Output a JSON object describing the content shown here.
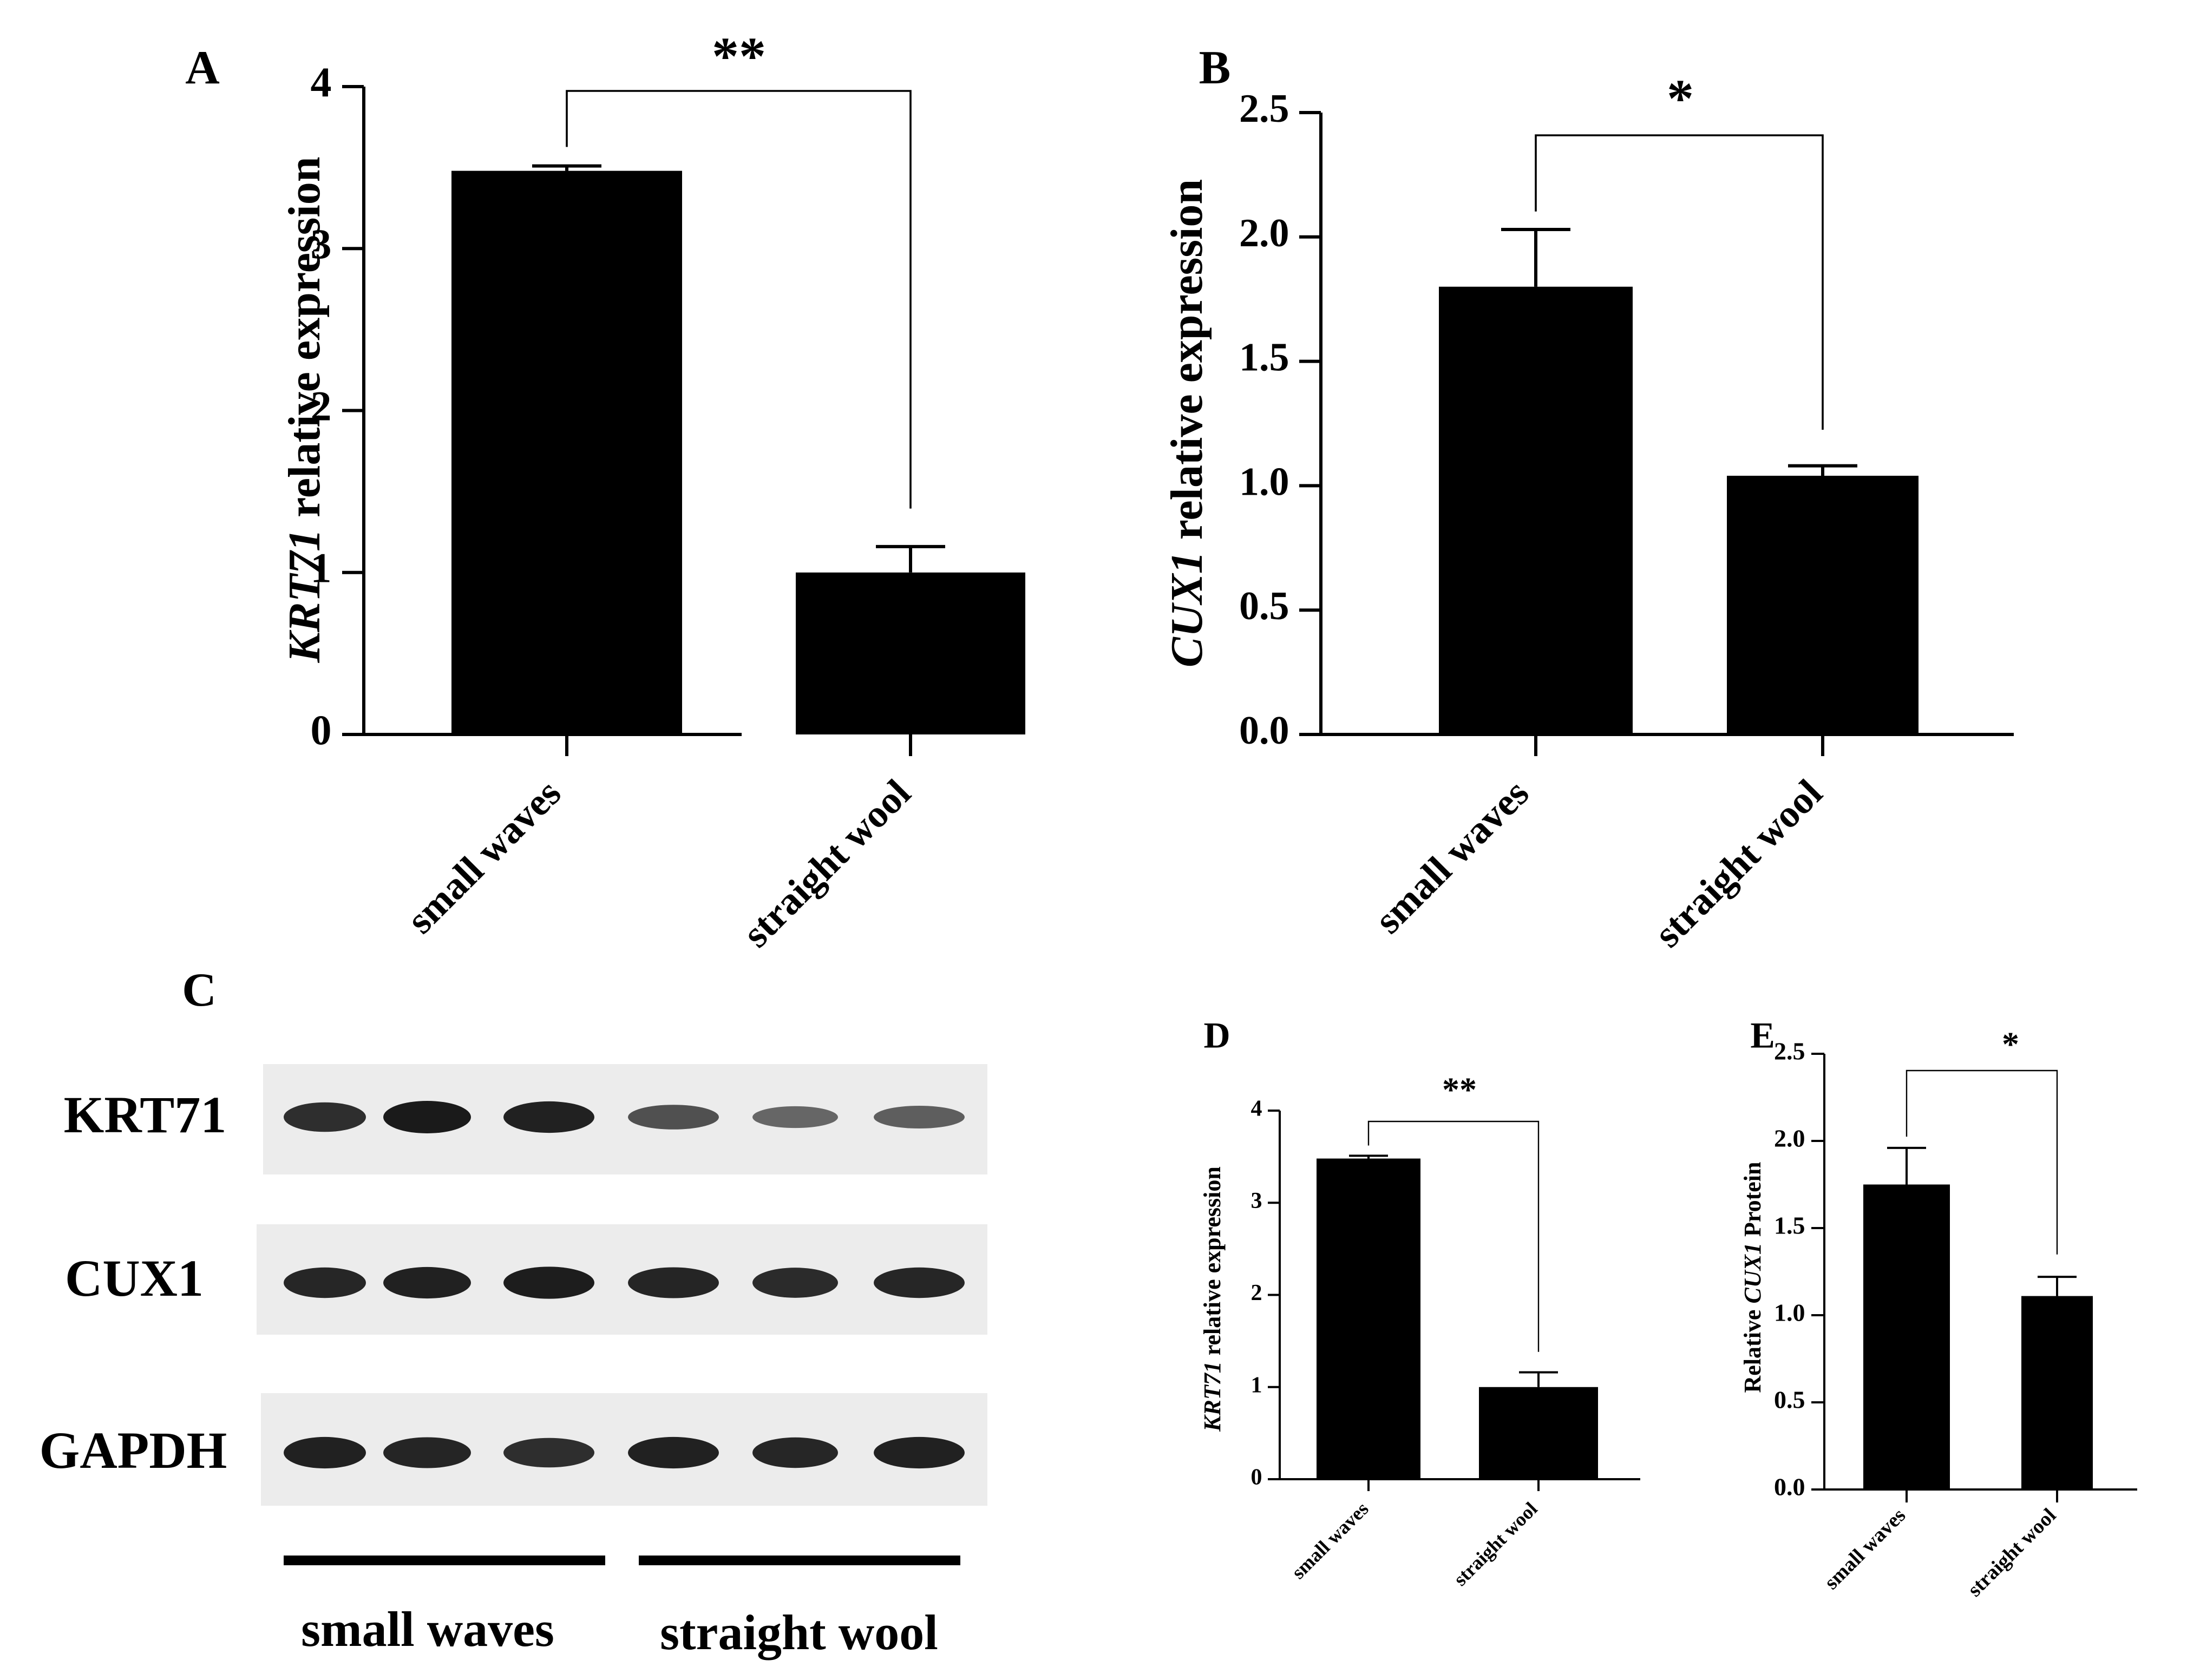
{
  "colors": {
    "bar": "#000000",
    "axis": "#000000",
    "background": "#ffffff",
    "blot_bg": "#ececec",
    "band": "#1a1a1a"
  },
  "chart_data": [
    {
      "panel": "A",
      "type": "bar",
      "categories": [
        "small waves",
        "straight wool"
      ],
      "values": [
        3.48,
        1.0
      ],
      "errors": [
        0.03,
        0.16
      ],
      "ylabel_gene": "KRT71",
      "ylabel_rest": " relative expression",
      "ylim": [
        0,
        4
      ],
      "yticks": [
        "0",
        "1",
        "2",
        "3",
        "4"
      ],
      "significance": "**"
    },
    {
      "panel": "B",
      "type": "bar",
      "categories": [
        "small waves",
        "straight wool"
      ],
      "values": [
        1.8,
        1.04
      ],
      "errors": [
        0.23,
        0.04
      ],
      "ylabel_gene": "CUX1",
      "ylabel_rest": " relative expression",
      "ylim": [
        0,
        2.5
      ],
      "yticks": [
        "0.0",
        "0.5",
        "1.0",
        "1.5",
        "2.0",
        "2.5"
      ],
      "significance": "*"
    },
    {
      "panel": "D",
      "type": "bar",
      "categories": [
        "small waves",
        "straight wool"
      ],
      "values": [
        3.48,
        1.0
      ],
      "errors": [
        0.03,
        0.16
      ],
      "ylabel_gene": "KRT71",
      "ylabel_rest": " relative expression",
      "ylim": [
        0,
        4
      ],
      "yticks": [
        "0",
        "1",
        "2",
        "3",
        "4"
      ],
      "significance": "**"
    },
    {
      "panel": "E",
      "type": "bar",
      "categories": [
        "small waves",
        "straight wool"
      ],
      "values": [
        1.75,
        1.11
      ],
      "errors": [
        0.21,
        0.11
      ],
      "ylabel_pre": "Relative ",
      "ylabel_gene": "CUX1",
      "ylabel_rest": " Protein",
      "ylim": [
        0,
        2.5
      ],
      "yticks": [
        "0.0",
        "0.5",
        "1.0",
        "1.5",
        "2.0",
        "2.5"
      ],
      "significance": "*"
    }
  ],
  "western_blot": {
    "panel": "C",
    "rows": [
      {
        "label": "KRT71",
        "intensities": [
          0.85,
          1.0,
          0.95,
          0.6,
          0.45,
          0.5
        ]
      },
      {
        "label": "CUX1",
        "intensities": [
          0.9,
          0.95,
          0.98,
          0.92,
          0.88,
          0.9
        ]
      },
      {
        "label": "GAPDH",
        "intensities": [
          0.95,
          0.92,
          0.85,
          0.95,
          0.9,
          0.95
        ]
      }
    ],
    "groups": [
      "small waves",
      "straight wool"
    ]
  }
}
